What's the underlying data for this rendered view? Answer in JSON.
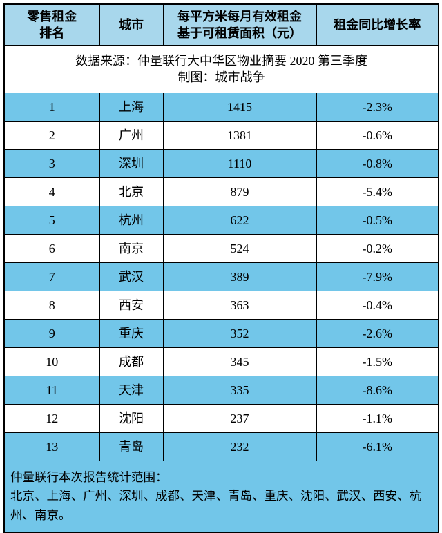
{
  "colors": {
    "header_bg": "#a8d7ec",
    "row_blue": "#72c6e9",
    "row_white": "#ffffff",
    "border": "#000000"
  },
  "table": {
    "headers": {
      "rank_line1": "零售租金",
      "rank_line2": "排名",
      "city": "城市",
      "rent_line1": "每平方米每月有效租金",
      "rent_line2": "基于可租赁面积（元）",
      "growth": "租金同比增长率"
    },
    "source_note": {
      "line1": "数据来源：仲量联行大中华区物业摘要 2020 第三季度",
      "line2": "制图：城市战争"
    },
    "rows": [
      {
        "rank": "1",
        "city": "上海",
        "rent": "1415",
        "growth": "-2.3%"
      },
      {
        "rank": "2",
        "city": "广州",
        "rent": "1381",
        "growth": "-0.6%"
      },
      {
        "rank": "3",
        "city": "深圳",
        "rent": "1110",
        "growth": "-0.8%"
      },
      {
        "rank": "4",
        "city": "北京",
        "rent": "879",
        "growth": "-5.4%"
      },
      {
        "rank": "5",
        "city": "杭州",
        "rent": "622",
        "growth": "-0.5%"
      },
      {
        "rank": "6",
        "city": "南京",
        "rent": "524",
        "growth": "-0.2%"
      },
      {
        "rank": "7",
        "city": "武汉",
        "rent": "389",
        "growth": "-7.9%"
      },
      {
        "rank": "8",
        "city": "西安",
        "rent": "363",
        "growth": "-0.4%"
      },
      {
        "rank": "9",
        "city": "重庆",
        "rent": "352",
        "growth": "-2.6%"
      },
      {
        "rank": "10",
        "city": "成都",
        "rent": "345",
        "growth": "-1.5%"
      },
      {
        "rank": "11",
        "city": "天津",
        "rent": "335",
        "growth": "-8.6%"
      },
      {
        "rank": "12",
        "city": "沈阳",
        "rent": "237",
        "growth": "-1.1%"
      },
      {
        "rank": "13",
        "city": "青岛",
        "rent": "232",
        "growth": "-6.1%"
      }
    ],
    "footer": {
      "line1": "仲量联行本次报告统计范围：",
      "line2": "北京、上海、广州、深圳、成都、天津、青岛、重庆、沈阳、武汉、西安、杭州、南京。"
    }
  },
  "chart_data": {
    "type": "table",
    "title": "",
    "columns": [
      "零售租金排名",
      "城市",
      "每平方米每月有效租金 基于可租赁面积（元）",
      "租金同比增长率"
    ],
    "rows": [
      [
        1,
        "上海",
        1415,
        "-2.3%"
      ],
      [
        2,
        "广州",
        1381,
        "-0.6%"
      ],
      [
        3,
        "深圳",
        1110,
        "-0.8%"
      ],
      [
        4,
        "北京",
        879,
        "-5.4%"
      ],
      [
        5,
        "杭州",
        622,
        "-0.5%"
      ],
      [
        6,
        "南京",
        524,
        "-0.2%"
      ],
      [
        7,
        "武汉",
        389,
        "-7.9%"
      ],
      [
        8,
        "西安",
        363,
        "-0.4%"
      ],
      [
        9,
        "重庆",
        352,
        "-2.6%"
      ],
      [
        10,
        "成都",
        345,
        "-1.5%"
      ],
      [
        11,
        "天津",
        335,
        "-8.6%"
      ],
      [
        12,
        "沈阳",
        237,
        "-1.1%"
      ],
      [
        13,
        "青岛",
        232,
        "-6.1%"
      ]
    ],
    "source": "数据来源：仲量联行大中华区物业摘要 2020 第三季度",
    "author": "制图：城市战争",
    "scope_note": "仲量联行本次报告统计范围：北京、上海、广州、深圳、成都、天津、青岛、重庆、沈阳、武汉、西安、杭州、南京。"
  }
}
